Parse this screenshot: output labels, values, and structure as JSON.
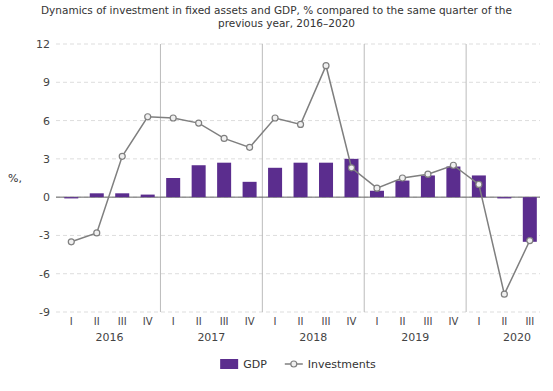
{
  "chart_data": {
    "type": "bar",
    "title": "Dynamics of investment in fixed assets and GDP, % compared to the same quarter of the\n      previous year, 2016–2020",
    "ylabel": "%,",
    "categories": [
      "I",
      "II",
      "III",
      "IV",
      "I",
      "II",
      "III",
      "IV",
      "I",
      "II",
      "III",
      "IV",
      "I",
      "II",
      "III",
      "IV",
      "I",
      "II",
      "III"
    ],
    "series": [
      {
        "name": "GDP",
        "type": "bar",
        "color": "#5b2d8e",
        "values": [
          -0.1,
          0.3,
          0.3,
          0.2,
          1.5,
          2.5,
          2.7,
          1.2,
          2.3,
          2.7,
          2.7,
          3.0,
          0.5,
          1.3,
          1.7,
          2.4,
          1.7,
          -0.1,
          -3.5
        ]
      },
      {
        "name": "Investments",
        "type": "line",
        "color": "#7f7f7f",
        "marker": "circle",
        "values": [
          -3.5,
          -2.8,
          3.2,
          6.3,
          6.2,
          5.8,
          4.6,
          3.9,
          6.2,
          5.7,
          10.3,
          2.3,
          0.7,
          1.5,
          1.8,
          2.5,
          1.0,
          -7.6,
          -3.4
        ]
      }
    ],
    "annotations": [
      {
        "text": "2016",
        "x": 1.5
      },
      {
        "text": "2017",
        "x": 5.5
      },
      {
        "text": "2018",
        "x": 9.5
      },
      {
        "text": "2019",
        "x": 13.5
      },
      {
        "text": "2020",
        "x": 17.5
      }
    ],
    "ylim": [
      -9,
      12
    ],
    "yticks": [
      -9,
      -6,
      -3,
      0,
      3,
      6,
      9,
      12
    ],
    "grid": true,
    "legend": "bottom"
  }
}
